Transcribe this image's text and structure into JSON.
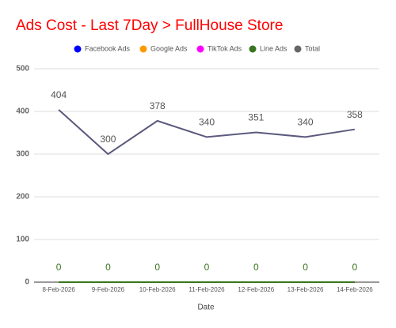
{
  "chart_data": {
    "type": "line",
    "title": "Ads Cost - Last 7Day > FullHouse Store",
    "x_label": "Date",
    "categories": [
      "8-Feb-2026",
      "9-Feb-2026",
      "10-Feb-2026",
      "11-Feb-2026",
      "12-Feb-2026",
      "13-Feb-2026",
      "14-Feb-2026"
    ],
    "series": [
      {
        "name": "Facebook Ads",
        "color": "#0000ff",
        "values": [
          0,
          0,
          0,
          0,
          0,
          0,
          0
        ]
      },
      {
        "name": "Google Ads",
        "color": "#ff9900",
        "values": [
          0,
          0,
          0,
          0,
          0,
          0,
          0
        ]
      },
      {
        "name": "TikTok Ads",
        "color": "#ff00ff",
        "values": [
          0,
          0,
          0,
          0,
          0,
          0,
          0
        ]
      },
      {
        "name": "Line Ads",
        "color": "#38761d",
        "values": [
          0,
          0,
          0,
          0,
          0,
          0,
          0
        ],
        "data_labels": true
      },
      {
        "name": "Total",
        "color": "#5b5a7d",
        "values": [
          404,
          300,
          378,
          340,
          351,
          340,
          358
        ],
        "data_labels": true
      }
    ],
    "ylim": [
      0,
      500
    ],
    "yticks": [
      0,
      100,
      200,
      300,
      400,
      500
    ],
    "grid": true
  }
}
